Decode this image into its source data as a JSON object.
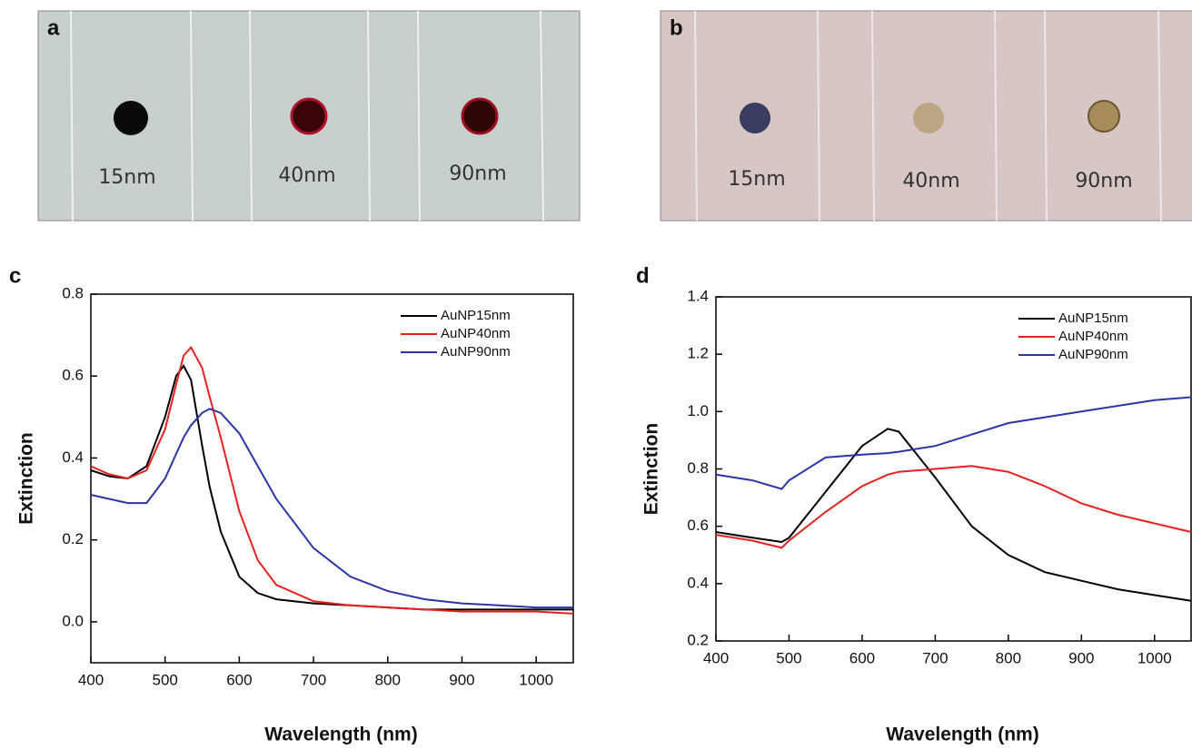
{
  "panels": [
    {
      "label": "a",
      "samples": [
        "15nm",
        "40nm",
        "90nm"
      ]
    },
    {
      "label": "b",
      "samples": [
        "15nm",
        "40nm",
        "90nm"
      ]
    },
    {
      "label": "c"
    },
    {
      "label": "d"
    }
  ],
  "chart_data": [
    {
      "type": "line",
      "xlabel": "Wavelength (nm)",
      "ylabel": "Extinction",
      "x": [
        400,
        425,
        450,
        475,
        500,
        515,
        525,
        535,
        550,
        560,
        575,
        600,
        625,
        650,
        700,
        750,
        800,
        850,
        900,
        950,
        1000,
        1050
      ],
      "series": [
        {
          "name": "AuNP15nm",
          "color": "#000000",
          "values": [
            0.37,
            0.355,
            0.35,
            0.38,
            0.5,
            0.6,
            0.625,
            0.59,
            0.43,
            0.33,
            0.22,
            0.11,
            0.07,
            0.055,
            0.045,
            0.04,
            0.035,
            0.03,
            0.03,
            0.03,
            0.03,
            0.03
          ]
        },
        {
          "name": "AuNP40nm",
          "color": "#e8211f",
          "values": [
            0.38,
            0.36,
            0.35,
            0.37,
            0.47,
            0.58,
            0.65,
            0.67,
            0.62,
            0.55,
            0.45,
            0.27,
            0.15,
            0.09,
            0.05,
            0.04,
            0.035,
            0.03,
            0.025,
            0.025,
            0.025,
            0.02
          ]
        },
        {
          "name": "AuNP90nm",
          "color": "#2b35a8",
          "values": [
            0.31,
            0.3,
            0.29,
            0.29,
            0.35,
            0.41,
            0.45,
            0.48,
            0.51,
            0.52,
            0.51,
            0.46,
            0.38,
            0.3,
            0.18,
            0.11,
            0.075,
            0.055,
            0.045,
            0.04,
            0.035,
            0.035
          ]
        }
      ],
      "xlim": [
        400,
        1050
      ],
      "ylim": [
        -0.1,
        0.8
      ],
      "xticks": [
        400,
        500,
        600,
        700,
        800,
        900,
        1000
      ],
      "yticks": [
        {
          "value": 0,
          "label": "0.0"
        },
        0.2,
        0.4,
        0.6,
        0.8
      ],
      "legend": "upper right"
    },
    {
      "type": "line",
      "xlabel": "Wavelength (nm)",
      "ylabel": "Extinction",
      "x": [
        400,
        450,
        490,
        500,
        550,
        600,
        635,
        650,
        700,
        750,
        800,
        850,
        900,
        950,
        1000,
        1050
      ],
      "series": [
        {
          "name": "AuNP15nm",
          "color": "#000000",
          "values": [
            0.58,
            0.56,
            0.545,
            0.56,
            0.72,
            0.88,
            0.94,
            0.93,
            0.77,
            0.6,
            0.5,
            0.44,
            0.41,
            0.38,
            0.36,
            0.34
          ]
        },
        {
          "name": "AuNP40nm",
          "color": "#e8211f",
          "values": [
            0.57,
            0.55,
            0.525,
            0.55,
            0.65,
            0.74,
            0.78,
            0.79,
            0.8,
            0.81,
            0.79,
            0.74,
            0.68,
            0.64,
            0.61,
            0.58
          ]
        },
        {
          "name": "AuNP90nm",
          "color": "#2b35a8",
          "values": [
            0.78,
            0.76,
            0.73,
            0.76,
            0.84,
            0.85,
            0.855,
            0.86,
            0.88,
            0.92,
            0.96,
            0.98,
            1.0,
            1.02,
            1.04,
            1.05
          ]
        }
      ],
      "xlim": [
        400,
        1050
      ],
      "ylim": [
        0.2,
        1.4
      ],
      "xticks": [
        400,
        500,
        600,
        700,
        800,
        900,
        1000
      ],
      "yticks": [
        0.2,
        0.4,
        0.6,
        0.8,
        {
          "value": 1,
          "label": "1.0"
        },
        1.2,
        1.4
      ],
      "legend": "upper right"
    }
  ]
}
